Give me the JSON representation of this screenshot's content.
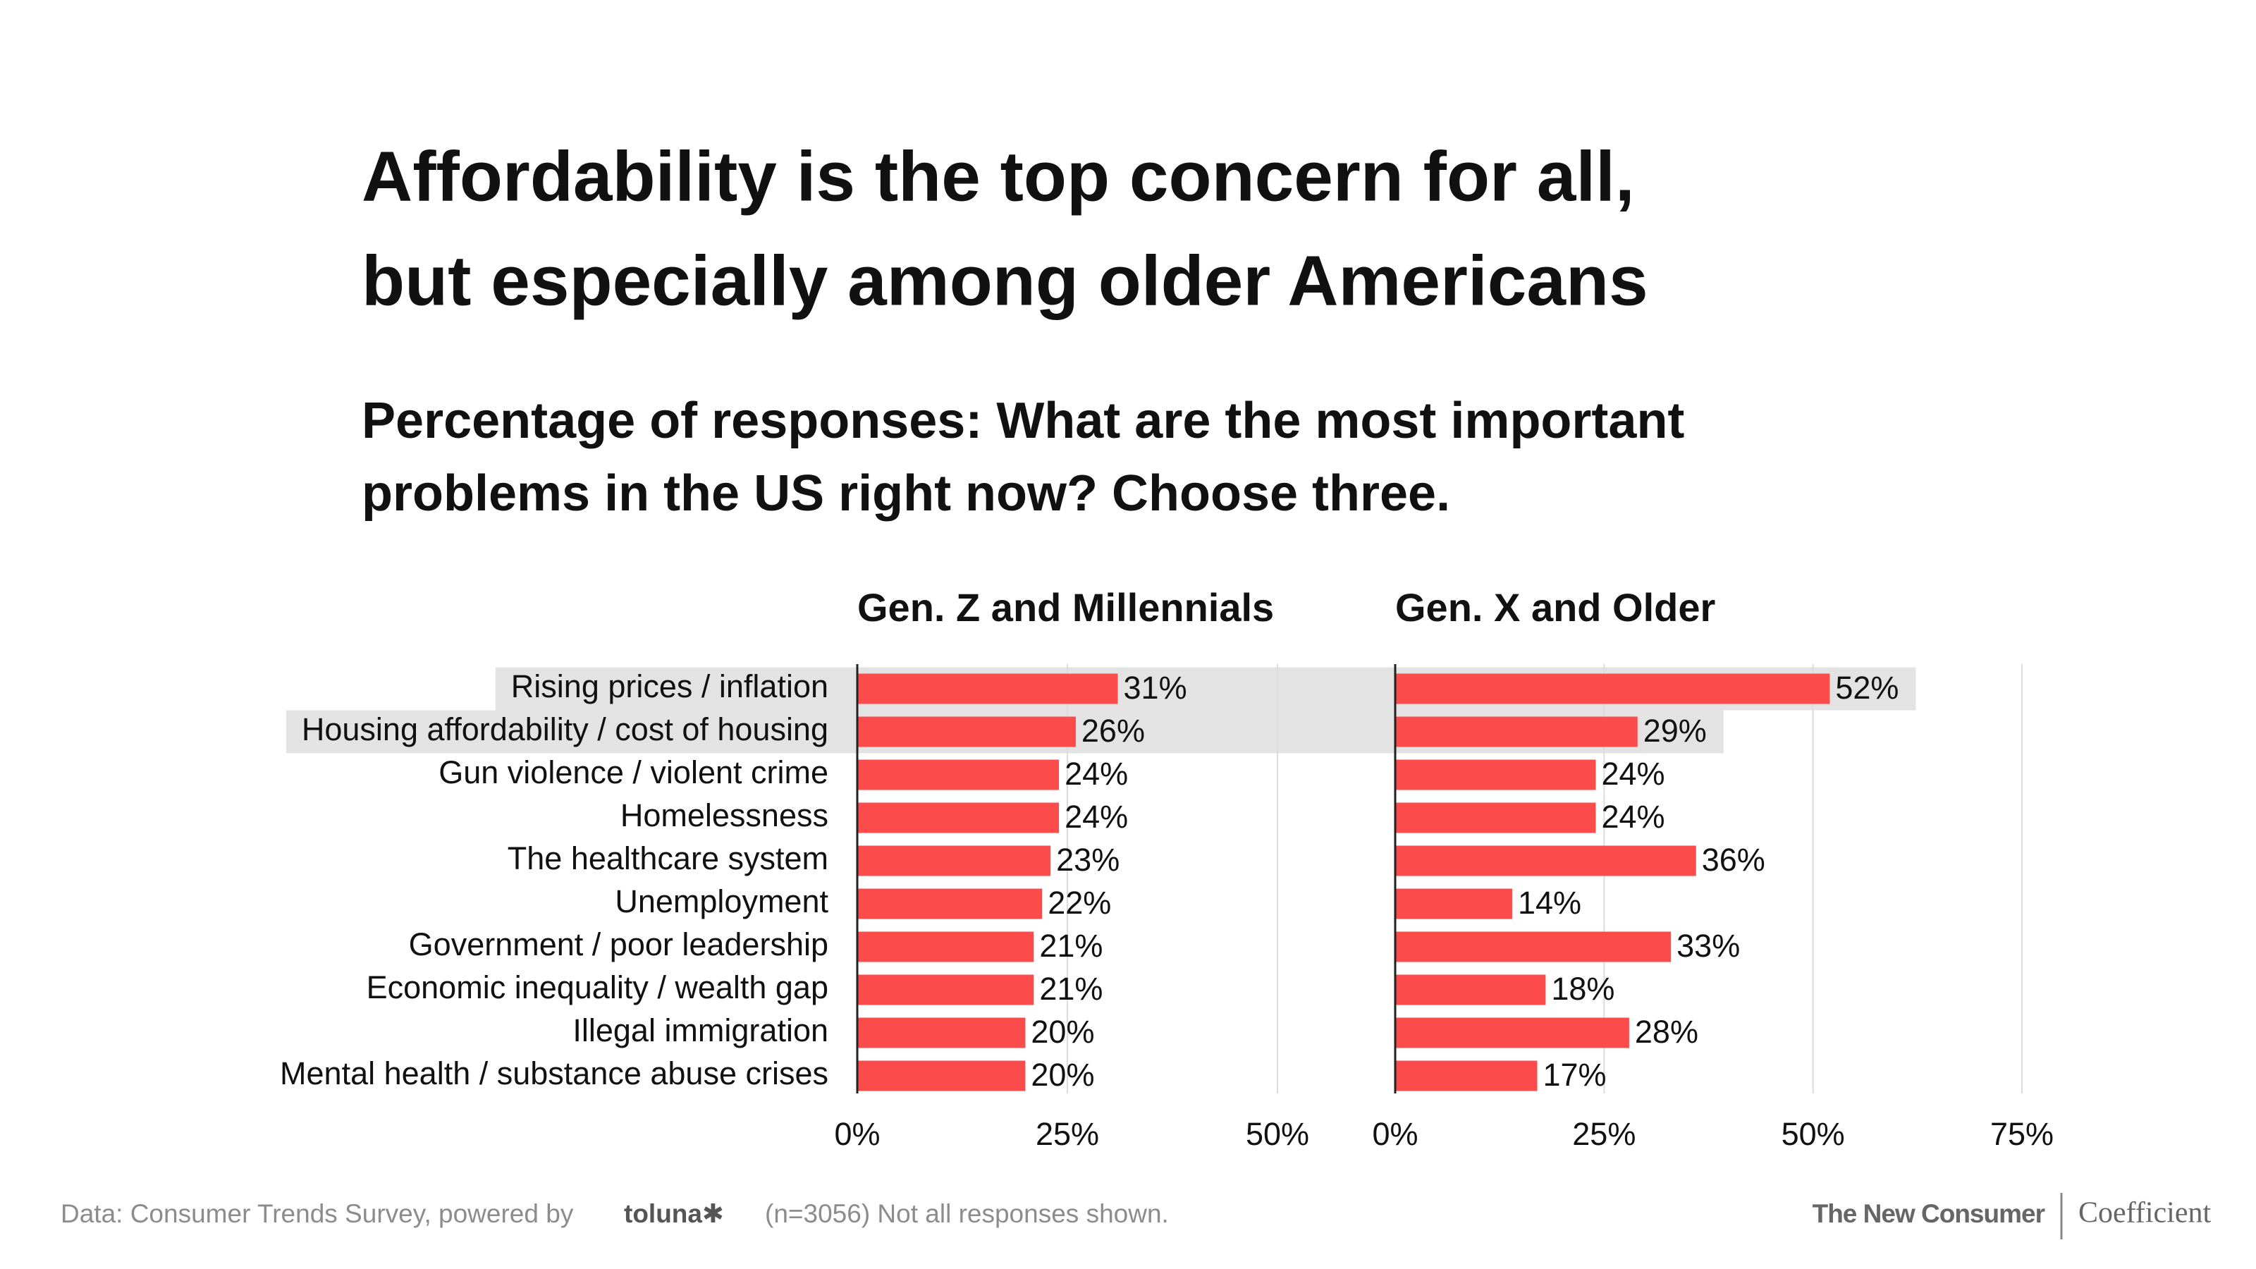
{
  "title": [
    "Affordability is the top concern for all,",
    "but especially among older Americans"
  ],
  "subtitle": [
    "Percentage of responses: What are the most important",
    "problems in the US right now? Choose three."
  ],
  "chart_data": [
    {
      "type": "bar",
      "title": "Gen. Z and Millennials",
      "color": "#fb4b4b",
      "categories": [
        "Rising prices / inflation",
        "Housing affordability / cost of housing",
        "Gun violence / violent crime",
        "Homelessness",
        "The healthcare system",
        "Unemployment",
        "Government / poor leadership",
        "Economic inequality / wealth gap",
        "Illegal immigration",
        "Mental health / substance abuse crises"
      ],
      "values": [
        31,
        26,
        24,
        24,
        23,
        22,
        21,
        21,
        20,
        20
      ],
      "value_labels": [
        "31%",
        "26%",
        "24%",
        "24%",
        "23%",
        "22%",
        "21%",
        "21%",
        "20%",
        "20%"
      ],
      "xlim": [
        0,
        50
      ],
      "xticks": [
        {
          "value": 0,
          "label": "0%"
        },
        {
          "value": 25,
          "label": "25%"
        },
        {
          "value": 50,
          "label": "50%"
        }
      ],
      "grid": true
    },
    {
      "type": "bar",
      "title": "Gen. X and Older",
      "color": "#fb4b4b",
      "values": [
        52,
        29,
        24,
        24,
        36,
        14,
        33,
        18,
        28,
        17
      ],
      "value_labels": [
        "52%",
        "29%",
        "24%",
        "24%",
        "36%",
        "14%",
        "33%",
        "18%",
        "28%",
        "17%"
      ],
      "xlim": [
        0,
        75
      ],
      "xticks": [
        {
          "value": 0,
          "label": "0%"
        },
        {
          "value": 25,
          "label": "25%"
        },
        {
          "value": 50,
          "label": "50%"
        },
        {
          "value": 75,
          "label": "75%"
        }
      ],
      "grid": true
    }
  ],
  "footer": {
    "source": "Data: Consumer Trends Survey, powered by",
    "logo": "toluna✱",
    "note": "(n=3056) Not all responses shown.",
    "brands": [
      "The New Consumer",
      "Coefficient"
    ]
  }
}
